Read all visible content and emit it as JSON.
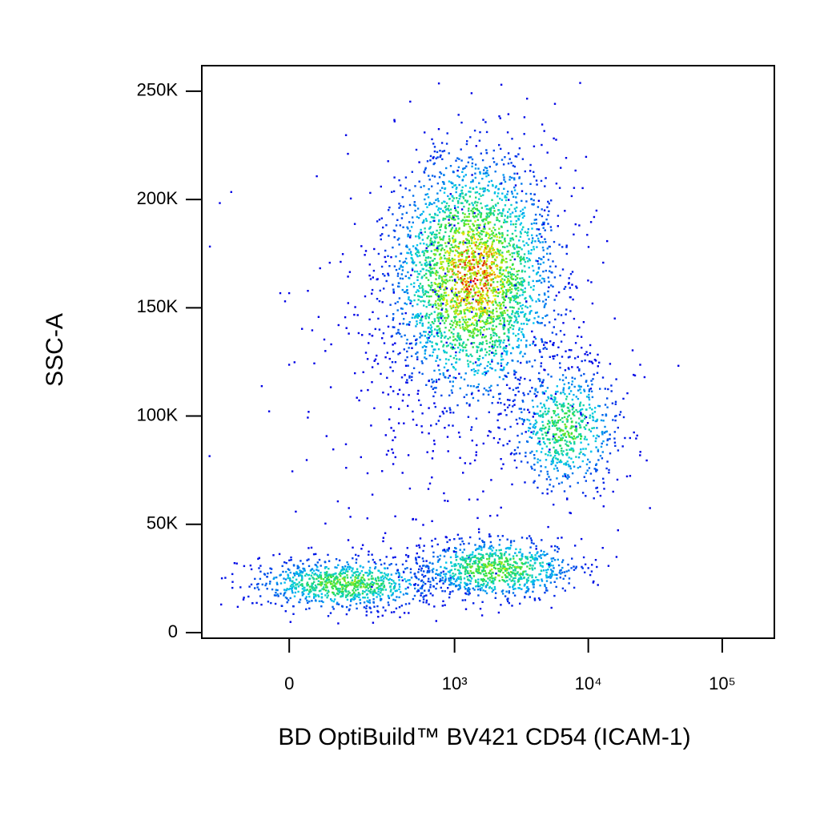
{
  "chart_data": {
    "type": "density",
    "x_label": "BD OptiBuild™ BV421 CD54 (ICAM-1)",
    "y_label": "SSC-A",
    "xscale": "biexponential",
    "xlim": [
      -250,
      245000
    ],
    "xticks": [
      0,
      {
        "value": 1000,
        "label": "10³"
      },
      {
        "value": 10000,
        "label": "10⁴"
      },
      {
        "value": 100000,
        "label": "10⁵"
      }
    ],
    "ylim": [
      -2600,
      261800
    ],
    "yticks": [
      {
        "value": 0,
        "label": "0"
      },
      {
        "value": 50000,
        "label": "50K"
      },
      {
        "value": 100000,
        "label": "100K"
      },
      {
        "value": 150000,
        "label": "150K"
      },
      {
        "value": 200000,
        "label": "200K"
      },
      {
        "value": 250000,
        "label": "250K"
      }
    ],
    "populations": [
      {
        "x_center": 1350,
        "y_center": 165000,
        "x_spread": 0.3,
        "y_spread": 28000,
        "count": 3000,
        "peak": 1.0
      },
      {
        "x_center": 6600,
        "y_center": 95000,
        "x_spread": 0.2,
        "y_spread": 15000,
        "count": 700,
        "peak": 0.6
      },
      {
        "x_center": 126,
        "y_center": 23000,
        "x_spread": 0.35,
        "y_spread": 6000,
        "count": 900,
        "peak": 0.65
      },
      {
        "x_center": 2050,
        "y_center": 30000,
        "x_spread": 0.3,
        "y_spread": 7000,
        "count": 900,
        "peak": 0.7
      },
      {
        "x_center": 700,
        "y_center": 130000,
        "x_spread": 0.6,
        "y_spread": 50000,
        "count": 350,
        "peak": 0.0
      }
    ],
    "colormap": [
      "#0000e6",
      "#00c8f0",
      "#30e040",
      "#f0f000",
      "#e00000"
    ]
  }
}
